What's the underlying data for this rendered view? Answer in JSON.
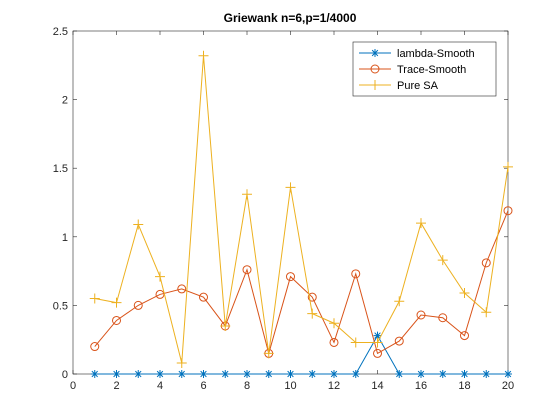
{
  "chart_data": {
    "type": "line",
    "title": "Griewank n=6,p=1/4000",
    "xlabel": "",
    "ylabel": "",
    "xlim": [
      0,
      20
    ],
    "ylim": [
      0,
      2.5
    ],
    "x_ticks": [
      0,
      2,
      4,
      6,
      8,
      10,
      12,
      14,
      16,
      18,
      20
    ],
    "y_ticks": [
      0,
      0.5,
      1,
      1.5,
      2,
      2.5
    ],
    "x_tick_labels": [
      "0",
      "2",
      "4",
      "6",
      "8",
      "10",
      "12",
      "14",
      "16",
      "18",
      "20"
    ],
    "y_tick_labels": [
      "0",
      "0.5",
      "1",
      "1.5",
      "2",
      "2.5"
    ],
    "grid": false,
    "legend_position": "top-right",
    "x": [
      1,
      2,
      3,
      4,
      5,
      6,
      7,
      8,
      9,
      10,
      11,
      12,
      13,
      14,
      15,
      16,
      17,
      18,
      19,
      20
    ],
    "series": [
      {
        "name": "lambda-Smooth",
        "color": "#0072BD",
        "marker": "asterisk",
        "values": [
          0,
          0,
          0,
          0,
          0,
          0,
          0,
          0,
          0,
          0,
          0,
          0,
          0,
          0.28,
          0,
          0,
          0,
          0,
          0,
          0
        ]
      },
      {
        "name": "Trace-Smooth",
        "color": "#D95319",
        "marker": "circle",
        "values": [
          0.2,
          0.39,
          0.5,
          0.58,
          0.62,
          0.56,
          0.35,
          0.76,
          0.15,
          0.71,
          0.56,
          0.23,
          0.73,
          0.15,
          0.24,
          0.43,
          0.41,
          0.28,
          0.81,
          1.19
        ]
      },
      {
        "name": "Pure SA",
        "color": "#EDB120",
        "marker": "plus",
        "values": [
          0.55,
          0.52,
          1.09,
          0.71,
          0.08,
          2.32,
          0.35,
          1.31,
          0.15,
          1.36,
          0.44,
          0.37,
          0.23,
          0.23,
          0.53,
          1.1,
          0.83,
          0.59,
          0.45,
          1.51
        ]
      }
    ]
  }
}
